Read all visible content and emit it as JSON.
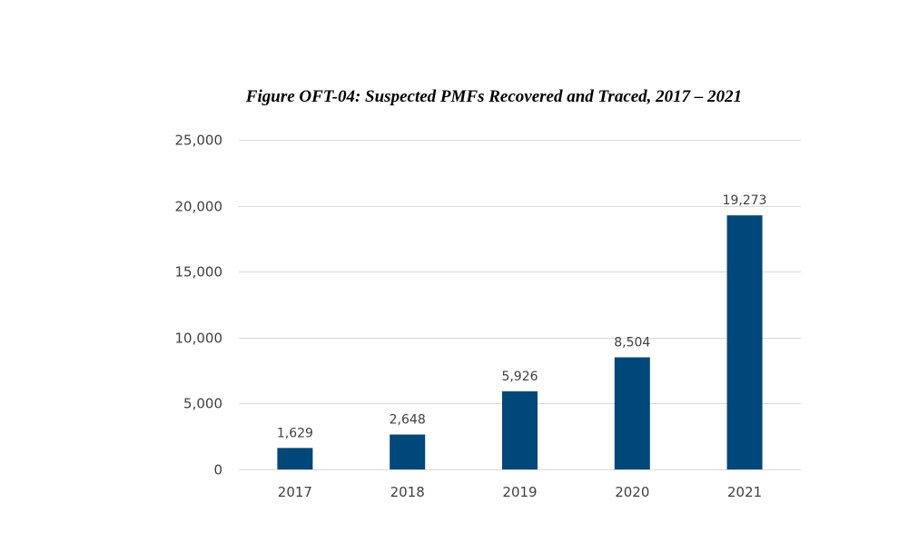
{
  "chart_data": {
    "type": "bar",
    "title": "Figure OFT-04: Suspected PMFs Recovered and Traced, 2017 – 2021",
    "categories": [
      "2017",
      "2018",
      "2019",
      "2020",
      "2021"
    ],
    "values": [
      1629,
      2648,
      5926,
      8504,
      19273
    ],
    "data_labels": [
      "1,629",
      "2,648",
      "5,926",
      "8,504",
      "19,273"
    ],
    "yticks": [
      0,
      5000,
      10000,
      15000,
      20000,
      25000
    ],
    "ytick_labels": [
      "0",
      "5,000",
      "10,000",
      "15,000",
      "20,000",
      "25,000"
    ],
    "ylim": [
      0,
      25000
    ],
    "xlabel": "",
    "ylabel": "",
    "grid": true,
    "bar_color": "#00477A",
    "grid_color": "#D9D9D9"
  }
}
